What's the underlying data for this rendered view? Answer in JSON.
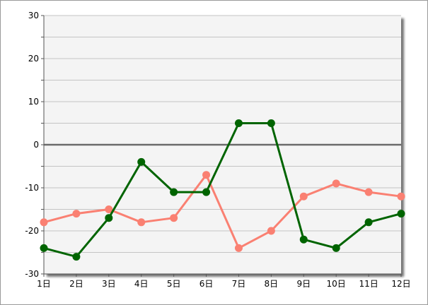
{
  "chart_data": {
    "type": "line",
    "categories": [
      "1日",
      "2日",
      "3日",
      "4日",
      "5日",
      "6日",
      "7日",
      "8日",
      "9日",
      "10日",
      "11日",
      "12日"
    ],
    "ylim": [
      -30,
      30
    ],
    "y_ticks": [
      30,
      20,
      10,
      0,
      -10,
      -20,
      -30
    ],
    "grid": true,
    "zero_line": true,
    "series": [
      {
        "color": "#FA8072",
        "values": [
          -18,
          -16,
          -15,
          -18,
          -17,
          -7,
          -24,
          -20,
          -12,
          -9,
          -11,
          -12
        ]
      },
      {
        "color": "#006400",
        "values": [
          -24,
          -26,
          -17,
          -4,
          -11,
          -11,
          5,
          5,
          -22,
          -24,
          -18,
          -16
        ]
      }
    ]
  }
}
